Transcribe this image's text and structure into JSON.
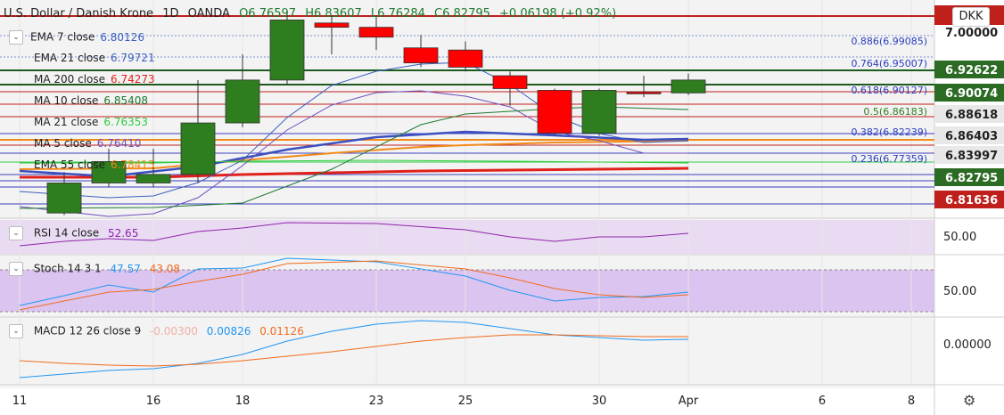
{
  "header": {
    "symbol": "U.S. Dollar / Danish Krone",
    "interval": "1D",
    "source": "OANDA",
    "open": "O6.76597",
    "high": "H6.83607",
    "low": "L6.76284",
    "close": "C6.82795",
    "change": "+0.06198 (+0.92%)",
    "currency": "DKK"
  },
  "indicators": [
    {
      "label": "EMA 7 close",
      "value": "6.80126",
      "color": "#3b5fbf"
    },
    {
      "label": "EMA 21 close",
      "value": "6.79721",
      "color": "#3b5fbf"
    },
    {
      "label": "MA 200 close",
      "value": "6.74273",
      "color": "#e0201b"
    },
    {
      "label": "MA 10 close",
      "value": "6.85408",
      "color": "#1d7a2e"
    },
    {
      "label": "MA 21 close",
      "value": "6.76353",
      "color": "#2ecc40"
    },
    {
      "label": "MA 5 close",
      "value": "6.76410",
      "color": "#6f4fbf"
    },
    {
      "label": "EMA 55 close",
      "value": "6.78415",
      "color": "#f28a1a"
    }
  ],
  "fib_levels": [
    "0.886(6.99085)",
    "0.764(6.95007)",
    "0.618(6.90127)",
    "0.5(6.86183)",
    "0.382(6.82239)",
    "0.236(6.77359)"
  ],
  "price_axis": [
    "7.00000",
    "6.92622",
    "6.90074",
    "6.88618",
    "6.86403",
    "6.83997",
    "6.82795",
    "6.81636"
  ],
  "price_axis_colors": [
    "none",
    "#2c6b24",
    "#2c6b24",
    "#e8e8e8",
    "#e8e8e8",
    "#e8e8e8",
    "#2c6b24",
    "#c0201b"
  ],
  "rsi": {
    "label": "RSI 14 close",
    "value": "52.65",
    "tick": "50.00"
  },
  "stoch": {
    "label": "Stoch 14 3 1",
    "k": "47.57",
    "d": "43.08",
    "tick": "50.00"
  },
  "macd": {
    "label": "MACD 12 26 close 9",
    "hist": "-0.00300",
    "macd": "0.00826",
    "signal": "0.01126",
    "tick": "0.00000"
  },
  "x_axis": [
    "11",
    "16",
    "18",
    "23",
    "25",
    "30",
    "Apr",
    "6",
    "8"
  ],
  "chart_data": {
    "type": "candlestick",
    "title": "U.S. Dollar / Danish Krone, 1D, OANDA",
    "x": [
      "Mar 12",
      "Mar 13",
      "Mar 16",
      "Mar 17",
      "Mar 18",
      "Mar 19",
      "Mar 20",
      "Mar 23",
      "Mar 24",
      "Mar 25",
      "Mar 26",
      "Mar 27",
      "Mar 30",
      "Mar 31",
      "Apr 1"
    ],
    "open": [
      6.55,
      6.62,
      6.62,
      6.64,
      6.76,
      6.86,
      6.993,
      6.983,
      6.935,
      6.93,
      6.87,
      6.836,
      6.736,
      6.832,
      6.83
    ],
    "high": [
      6.645,
      6.7,
      6.7,
      6.86,
      6.92,
      7.02,
      7.01,
      7.01,
      6.965,
      6.95,
      6.88,
      6.84,
      6.84,
      6.87,
      6.875
    ],
    "low": [
      6.545,
      6.61,
      6.61,
      6.62,
      6.75,
      6.85,
      6.92,
      6.93,
      6.89,
      6.88,
      6.8,
      6.73,
      6.73,
      6.82,
      6.825
    ],
    "close": [
      6.62,
      6.67,
      6.64,
      6.76,
      6.86,
      7.0,
      6.983,
      6.96,
      6.9,
      6.89,
      6.84,
      6.736,
      6.836,
      6.828,
      6.86
    ],
    "ylim": [
      6.54,
      7.03
    ]
  }
}
